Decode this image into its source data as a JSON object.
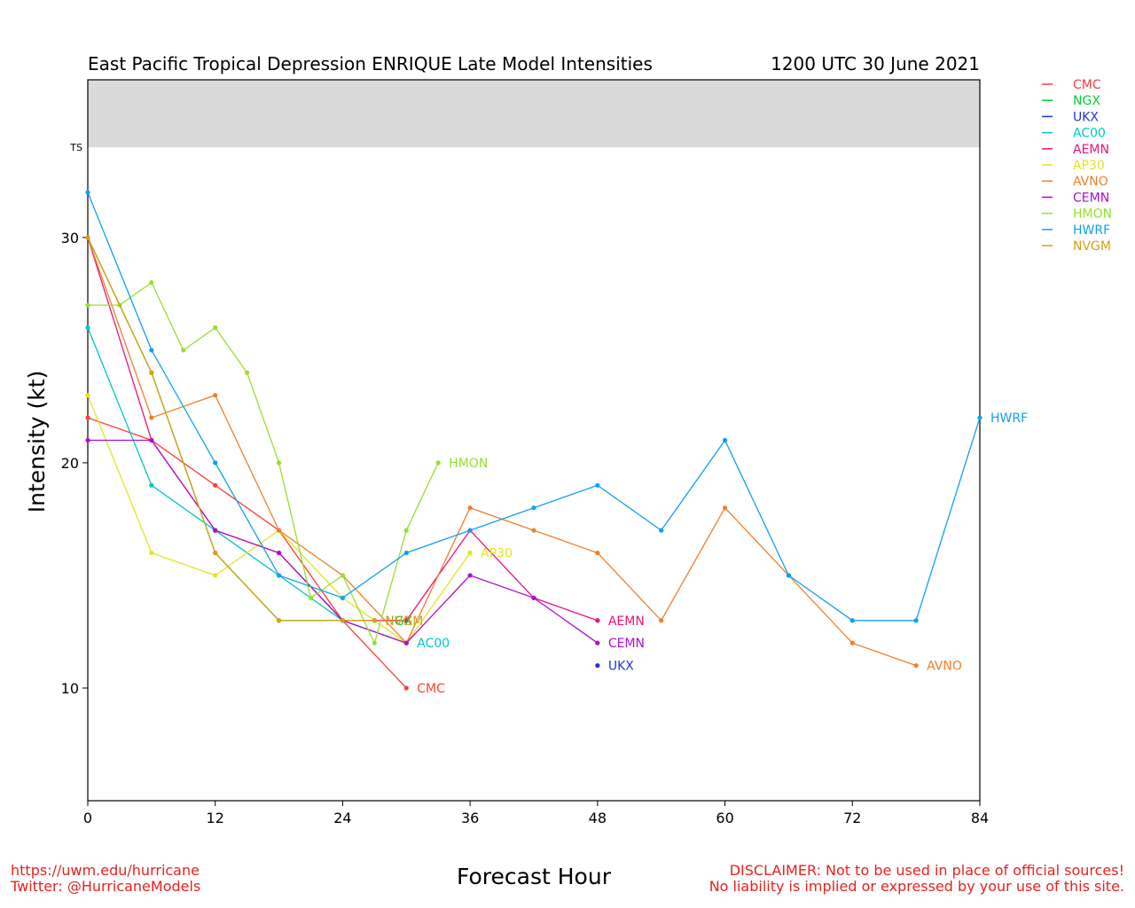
{
  "footer": {
    "url": "https://uwm.edu/hurricane",
    "twitter": "Twitter: @HurricaneModels",
    "disclaimer_line1": "DISCLAIMER: Not to be used in place of official sources!",
    "disclaimer_line2": "No liability is implied or expressed by your use of this site."
  },
  "chart_data": {
    "type": "line",
    "title": "East Pacific Tropical Depression ENRIQUE Late Model Intensities",
    "subtitle": "1200 UTC 30 June 2021",
    "xlabel": "Forecast Hour",
    "ylabel": "Intensity (kt)",
    "xlim": [
      0,
      84
    ],
    "ylim": [
      5,
      37
    ],
    "xticks": [
      0,
      12,
      24,
      36,
      48,
      60,
      72,
      84
    ],
    "yticks": [
      10,
      20,
      30
    ],
    "band": {
      "label": "TS",
      "from": 34,
      "to": 37,
      "color": "#dadada"
    },
    "legend_position": "right",
    "series": [
      {
        "name": "CMC",
        "color": "#ff3b3b",
        "end_label": "CMC",
        "points": [
          [
            0,
            22
          ],
          [
            6,
            21
          ],
          [
            12,
            19
          ],
          [
            18,
            17
          ],
          [
            24,
            13
          ],
          [
            30,
            10
          ]
        ]
      },
      {
        "name": "NGX",
        "color": "#00cc33",
        "end_label": "NGX",
        "points": [
          [
            0,
            30
          ],
          [
            6,
            24
          ],
          [
            12,
            16
          ],
          [
            18,
            13
          ],
          [
            24,
            13
          ],
          [
            27,
            13
          ]
        ]
      },
      {
        "name": "UKX",
        "color": "#2233dd",
        "end_label": "UKX",
        "points": [
          [
            48,
            11
          ]
        ]
      },
      {
        "name": "AC00",
        "color": "#00c5c5",
        "end_label": "AC00",
        "points": [
          [
            0,
            26
          ],
          [
            6,
            19
          ],
          [
            12,
            17
          ],
          [
            18,
            15
          ],
          [
            24,
            13
          ],
          [
            30,
            12
          ]
        ]
      },
      {
        "name": "AEMN",
        "color": "#ee1177",
        "end_label": "AEMN",
        "points": [
          [
            0,
            30
          ],
          [
            6,
            21
          ],
          [
            12,
            17
          ],
          [
            18,
            16
          ],
          [
            24,
            13
          ],
          [
            30,
            13
          ],
          [
            36,
            17
          ],
          [
            42,
            14
          ],
          [
            48,
            13
          ]
        ]
      },
      {
        "name": "AP30",
        "color": "#e3e322",
        "end_label": "AP30",
        "points": [
          [
            0,
            23
          ],
          [
            6,
            16
          ],
          [
            12,
            15
          ],
          [
            18,
            17
          ],
          [
            24,
            14
          ],
          [
            30,
            12
          ],
          [
            36,
            16
          ]
        ]
      },
      {
        "name": "AVNO",
        "color": "#ee7f2d",
        "end_label": "AVNO",
        "points": [
          [
            0,
            30
          ],
          [
            6,
            22
          ],
          [
            12,
            23
          ],
          [
            18,
            17
          ],
          [
            24,
            15
          ],
          [
            30,
            12
          ],
          [
            36,
            18
          ],
          [
            42,
            17
          ],
          [
            48,
            16
          ],
          [
            54,
            13
          ],
          [
            60,
            18
          ],
          [
            66,
            15
          ],
          [
            72,
            12
          ],
          [
            78,
            11
          ]
        ]
      },
      {
        "name": "CEMN",
        "color": "#aa11cc",
        "end_label": "CEMN",
        "points": [
          [
            0,
            21
          ],
          [
            6,
            21
          ],
          [
            12,
            17
          ],
          [
            18,
            16
          ],
          [
            24,
            13
          ],
          [
            30,
            12
          ],
          [
            36,
            15
          ],
          [
            42,
            14
          ],
          [
            48,
            12
          ]
        ]
      },
      {
        "name": "HMON",
        "color": "#99dd33",
        "end_label": "HMON",
        "points": [
          [
            0,
            27
          ],
          [
            3,
            27
          ],
          [
            6,
            28
          ],
          [
            9,
            25
          ],
          [
            12,
            26
          ],
          [
            15,
            24
          ],
          [
            18,
            20
          ],
          [
            21,
            14
          ],
          [
            24,
            15
          ],
          [
            27,
            12
          ],
          [
            30,
            17
          ],
          [
            33,
            20
          ]
        ]
      },
      {
        "name": "HWRF",
        "color": "#11a0ee",
        "end_label": "HWRF",
        "points": [
          [
            0,
            32
          ],
          [
            6,
            25
          ],
          [
            12,
            20
          ],
          [
            18,
            15
          ],
          [
            24,
            14
          ],
          [
            30,
            16
          ],
          [
            36,
            17
          ],
          [
            42,
            18
          ],
          [
            48,
            19
          ],
          [
            54,
            17
          ],
          [
            60,
            21
          ],
          [
            66,
            15
          ],
          [
            72,
            13
          ],
          [
            78,
            13
          ],
          [
            84,
            22
          ]
        ]
      },
      {
        "name": "NVGM",
        "color": "#d4a017",
        "end_label": "NVGM",
        "points": [
          [
            0,
            30
          ],
          [
            6,
            24
          ],
          [
            12,
            16
          ],
          [
            18,
            13
          ],
          [
            24,
            13
          ],
          [
            27,
            13
          ]
        ]
      }
    ]
  }
}
